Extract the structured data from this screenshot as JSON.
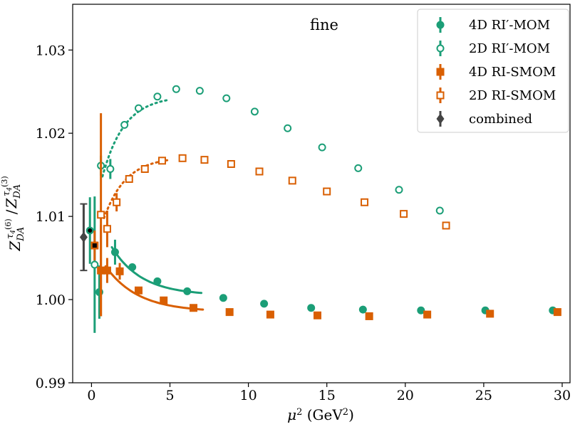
{
  "chart_data": {
    "type": "scatter",
    "annotation": "fine",
    "xlabel": "μ² (GeV²)",
    "ylabel": "Z_DA^(6) / Z_DA^(3) with τ4 superscripts",
    "xlim": [
      -1.2,
      30.5
    ],
    "ylim": [
      0.99,
      1.0355
    ],
    "xticks": [
      "0",
      "5",
      "10",
      "15",
      "20",
      "25",
      "30"
    ],
    "xtick_values": [
      0,
      5,
      10,
      15,
      20,
      25,
      30
    ],
    "yticks": [
      "0.99",
      "1.00",
      "1.01",
      "1.02",
      "1.03"
    ],
    "ytick_values": [
      0.99,
      1.0,
      1.01,
      1.02,
      1.03
    ],
    "legend_position": "top-right",
    "series": [
      {
        "name": "4D RI′-MOM",
        "color": "#1b9e77",
        "marker": "circle-filled",
        "points": [
          {
            "x": -0.1,
            "y": 1.0083,
            "err": 0.004
          },
          {
            "x": 0.5,
            "y": 1.0009,
            "err": 0.0032
          },
          {
            "x": 1.5,
            "y": 1.0057,
            "err": 0.0015
          },
          {
            "x": 2.6,
            "y": 1.0039
          },
          {
            "x": 4.2,
            "y": 1.0022
          },
          {
            "x": 6.1,
            "y": 1.001
          },
          {
            "x": 8.4,
            "y": 1.0002
          },
          {
            "x": 11.0,
            "y": 0.9995
          },
          {
            "x": 14.0,
            "y": 0.999
          },
          {
            "x": 17.3,
            "y": 0.9988
          },
          {
            "x": 21.0,
            "y": 0.9987
          },
          {
            "x": 25.1,
            "y": 0.9987
          },
          {
            "x": 29.4,
            "y": 0.9987
          }
        ],
        "fit": {
          "x": [
            1.3,
            7.0
          ],
          "y": [
            1.0063,
            1.0008
          ],
          "style": "solid"
        }
      },
      {
        "name": "2D RI′-MOM",
        "color": "#1b9e77",
        "marker": "circle-open",
        "points": [
          {
            "x": 0.2,
            "y": 1.0042,
            "err": 0.0082
          },
          {
            "x": 0.6,
            "y": 1.0161,
            "err": 0.0012
          },
          {
            "x": 1.2,
            "y": 1.0157,
            "err": 0.0012
          },
          {
            "x": 2.1,
            "y": 1.021
          },
          {
            "x": 3.0,
            "y": 1.023
          },
          {
            "x": 4.2,
            "y": 1.0244
          },
          {
            "x": 5.4,
            "y": 1.0253
          },
          {
            "x": 6.9,
            "y": 1.0251
          },
          {
            "x": 8.6,
            "y": 1.0242
          },
          {
            "x": 10.4,
            "y": 1.0226
          },
          {
            "x": 12.5,
            "y": 1.0206
          },
          {
            "x": 14.7,
            "y": 1.0183
          },
          {
            "x": 17.0,
            "y": 1.0158
          },
          {
            "x": 19.6,
            "y": 1.0132
          },
          {
            "x": 22.2,
            "y": 1.0107
          }
        ],
        "fit": {
          "x": [
            0.7,
            4.9
          ],
          "y": [
            1.0148,
            1.024
          ],
          "style": "dotted"
        }
      },
      {
        "name": "4D RI-SMOM",
        "color": "#d95f02",
        "marker": "square-filled",
        "points": [
          {
            "x": 0.2,
            "y": 1.0065,
            "err": 0.0018
          },
          {
            "x": 0.6,
            "y": 1.0035,
            "err": 0.0055
          },
          {
            "x": 1.0,
            "y": 1.0035,
            "err": 0.0015
          },
          {
            "x": 1.8,
            "y": 1.0034,
            "err": 0.001
          },
          {
            "x": 3.0,
            "y": 1.0011
          },
          {
            "x": 4.6,
            "y": 0.9999
          },
          {
            "x": 6.5,
            "y": 0.999
          },
          {
            "x": 8.8,
            "y": 0.9985
          },
          {
            "x": 11.4,
            "y": 0.9982
          },
          {
            "x": 14.4,
            "y": 0.9981
          },
          {
            "x": 17.7,
            "y": 0.998
          },
          {
            "x": 21.4,
            "y": 0.9982
          },
          {
            "x": 25.4,
            "y": 0.9983
          },
          {
            "x": 29.7,
            "y": 0.9985
          }
        ],
        "fit": {
          "x": [
            0.9,
            7.1
          ],
          "y": [
            1.004,
            0.9988
          ],
          "style": "solid"
        }
      },
      {
        "name": "2D RI-SMOM",
        "color": "#d95f02",
        "marker": "square-open",
        "points": [
          {
            "x": 0.6,
            "y": 1.0102,
            "err": 0.0122
          },
          {
            "x": 1.0,
            "y": 1.0085,
            "err": 0.0022
          },
          {
            "x": 1.6,
            "y": 1.0117,
            "err": 0.0011
          },
          {
            "x": 2.4,
            "y": 1.0145
          },
          {
            "x": 3.4,
            "y": 1.0157
          },
          {
            "x": 4.5,
            "y": 1.0167
          },
          {
            "x": 5.8,
            "y": 1.017
          },
          {
            "x": 7.2,
            "y": 1.0168
          },
          {
            "x": 8.9,
            "y": 1.0163
          },
          {
            "x": 10.7,
            "y": 1.0154
          },
          {
            "x": 12.8,
            "y": 1.0143
          },
          {
            "x": 15.0,
            "y": 1.013
          },
          {
            "x": 17.4,
            "y": 1.0117
          },
          {
            "x": 19.9,
            "y": 1.0103
          },
          {
            "x": 22.6,
            "y": 1.0089
          }
        ],
        "fit": {
          "x": [
            0.8,
            5.0
          ],
          "y": [
            1.0098,
            1.0168
          ],
          "style": "dotted"
        }
      },
      {
        "name": "combined",
        "color": "#444444",
        "marker": "diamond-filled",
        "points": [
          {
            "x": -0.5,
            "y": 1.0075,
            "err": 0.004
          }
        ]
      }
    ]
  }
}
